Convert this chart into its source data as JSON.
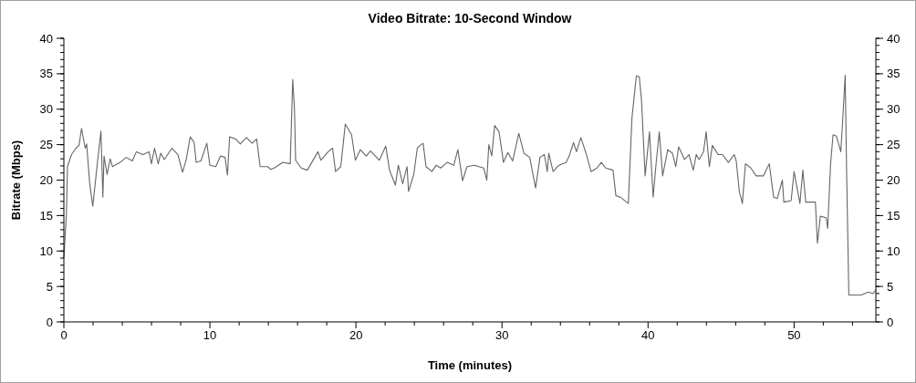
{
  "chart_data": {
    "type": "line",
    "title": "Video Bitrate: 10-Second Window",
    "xlabel": "Time (minutes)",
    "ylabel": "Bitrate (Mbps)",
    "xlim": [
      0,
      55.6
    ],
    "ylim": [
      0,
      40
    ],
    "y2lim": [
      0,
      40
    ],
    "xticks": [
      0,
      {
        "value": 2,
        "label": null
      },
      {
        "value": 4,
        "label": null
      },
      {
        "value": 6,
        "label": null
      },
      {
        "value": 8,
        "label": null
      },
      10,
      {
        "value": 12,
        "label": null
      },
      {
        "value": 14,
        "label": null
      },
      {
        "value": 16,
        "label": null
      },
      {
        "value": 18,
        "label": null
      },
      20,
      {
        "value": 22,
        "label": null
      },
      {
        "value": 24,
        "label": null
      },
      {
        "value": 26,
        "label": null
      },
      {
        "value": 28,
        "label": null
      },
      30,
      {
        "value": 32,
        "label": null
      },
      {
        "value": 34,
        "label": null
      },
      {
        "value": 36,
        "label": null
      },
      {
        "value": 38,
        "label": null
      },
      40,
      {
        "value": 42,
        "label": null
      },
      {
        "value": 44,
        "label": null
      },
      {
        "value": 46,
        "label": null
      },
      {
        "value": 48,
        "label": null
      },
      50,
      {
        "value": 52,
        "label": null
      },
      {
        "value": 54,
        "label": null
      }
    ],
    "yticks": [
      0,
      5,
      10,
      15,
      20,
      25,
      30,
      35,
      40
    ],
    "y2ticks": [
      0,
      5,
      10,
      15,
      20,
      25,
      30,
      35,
      40
    ],
    "grid": false,
    "marker": "none",
    "line_style": "solid",
    "series": [
      {
        "color": "#666666",
        "x": [
          0,
          0.17,
          0.25,
          0.52,
          0.83,
          1.04,
          1.21,
          1.46,
          1.56,
          1.77,
          1.98,
          2.29,
          2.54,
          2.67,
          2.75,
          2.96,
          3.17,
          3.33,
          3.85,
          4.27,
          4.69,
          4.96,
          5.42,
          5.83,
          6.0,
          6.21,
          6.46,
          6.63,
          6.88,
          7.4,
          7.81,
          8.13,
          8.38,
          8.65,
          8.92,
          9.06,
          9.38,
          9.79,
          10.0,
          10.4,
          10.73,
          11.04,
          11.2,
          11.35,
          11.77,
          12.08,
          12.5,
          12.9,
          13.2,
          13.44,
          13.96,
          14.17,
          14.4,
          15.0,
          15.5,
          15.67,
          15.79,
          15.87,
          16.25,
          16.67,
          17.4,
          17.6,
          18.1,
          18.4,
          18.6,
          18.96,
          19.27,
          19.7,
          19.96,
          20.3,
          20.7,
          21.0,
          21.6,
          22.04,
          22.3,
          22.7,
          22.9,
          23.2,
          23.5,
          23.6,
          23.96,
          24.2,
          24.4,
          24.6,
          24.8,
          25.2,
          25.5,
          25.8,
          26.25,
          26.7,
          26.98,
          27.3,
          27.6,
          28.1,
          28.75,
          28.96,
          29.1,
          29.3,
          29.5,
          29.8,
          30.1,
          30.4,
          30.73,
          31.15,
          31.5,
          31.9,
          32.3,
          32.6,
          32.9,
          33.1,
          33.2,
          33.5,
          33.9,
          34.4,
          34.6,
          34.9,
          35.1,
          35.4,
          35.75,
          36.1,
          36.5,
          36.8,
          37.1,
          37.6,
          37.8,
          38.1,
          38.65,
          38.9,
          39.2,
          39.4,
          39.55,
          39.8,
          40.1,
          40.35,
          40.56,
          40.77,
          41.0,
          41.35,
          41.67,
          41.9,
          42.1,
          42.5,
          42.8,
          43.1,
          43.3,
          43.5,
          43.8,
          43.98,
          44.2,
          44.4,
          44.8,
          45.1,
          45.5,
          45.9,
          46.04,
          46.25,
          46.46,
          46.67,
          47.04,
          47.4,
          47.9,
          48.3,
          48.6,
          48.85,
          49.2,
          49.3,
          49.8,
          50.0,
          50.25,
          50.4,
          50.6,
          50.8,
          51.46,
          51.6,
          51.8,
          52.2,
          52.3,
          52.5,
          52.67,
          52.9,
          53.2,
          53.3,
          53.5,
          53.6,
          53.75,
          54.6,
          55.1,
          55.4,
          55.6
        ],
        "values": [
          9.0,
          15.0,
          21.9,
          23.6,
          24.5,
          24.9,
          27.3,
          24.5,
          25.1,
          19.5,
          16.3,
          22.3,
          26.9,
          17.6,
          23.4,
          20.8,
          23.0,
          21.9,
          22.5,
          23.2,
          22.7,
          24.0,
          23.6,
          24.0,
          22.3,
          24.5,
          22.3,
          23.8,
          22.9,
          24.5,
          23.6,
          21.1,
          22.9,
          26.1,
          25.3,
          22.5,
          22.7,
          25.2,
          22.1,
          21.9,
          23.4,
          23.2,
          20.7,
          26.1,
          25.8,
          25.1,
          26.0,
          25.2,
          25.8,
          21.9,
          21.9,
          21.5,
          21.7,
          22.5,
          22.3,
          34.2,
          30.1,
          22.8,
          21.7,
          21.4,
          24.0,
          22.8,
          24.0,
          24.5,
          21.2,
          21.9,
          27.9,
          26.4,
          22.8,
          24.3,
          23.4,
          24.1,
          22.8,
          24.8,
          21.4,
          19.3,
          22.1,
          19.5,
          21.9,
          18.4,
          20.8,
          24.5,
          24.9,
          25.2,
          21.9,
          21.2,
          22.1,
          21.7,
          22.5,
          22.1,
          24.3,
          19.9,
          21.9,
          22.1,
          21.7,
          20.0,
          25.0,
          23.4,
          27.7,
          26.8,
          22.5,
          23.9,
          22.7,
          26.6,
          23.8,
          23.2,
          18.9,
          23.2,
          23.6,
          21.2,
          23.8,
          21.2,
          22.1,
          22.5,
          23.4,
          25.3,
          24.0,
          26.0,
          23.8,
          21.2,
          21.7,
          22.5,
          21.7,
          21.4,
          17.8,
          17.6,
          16.7,
          28.8,
          34.7,
          34.6,
          31.4,
          20.6,
          26.8,
          17.6,
          22.5,
          26.8,
          20.6,
          24.3,
          23.8,
          21.9,
          24.7,
          22.9,
          23.6,
          21.4,
          23.6,
          22.9,
          24.0,
          26.8,
          21.9,
          24.9,
          23.6,
          23.6,
          22.5,
          23.6,
          22.7,
          18.4,
          16.7,
          22.3,
          21.7,
          20.6,
          20.6,
          22.3,
          17.6,
          17.4,
          20.0,
          16.9,
          17.1,
          21.2,
          18.4,
          16.7,
          21.4,
          16.9,
          16.9,
          11.1,
          14.9,
          14.7,
          13.2,
          22.3,
          26.4,
          26.2,
          24.0,
          27.4,
          34.8,
          21.0,
          3.8,
          3.8,
          4.2,
          4.0,
          4.5
        ]
      }
    ]
  }
}
